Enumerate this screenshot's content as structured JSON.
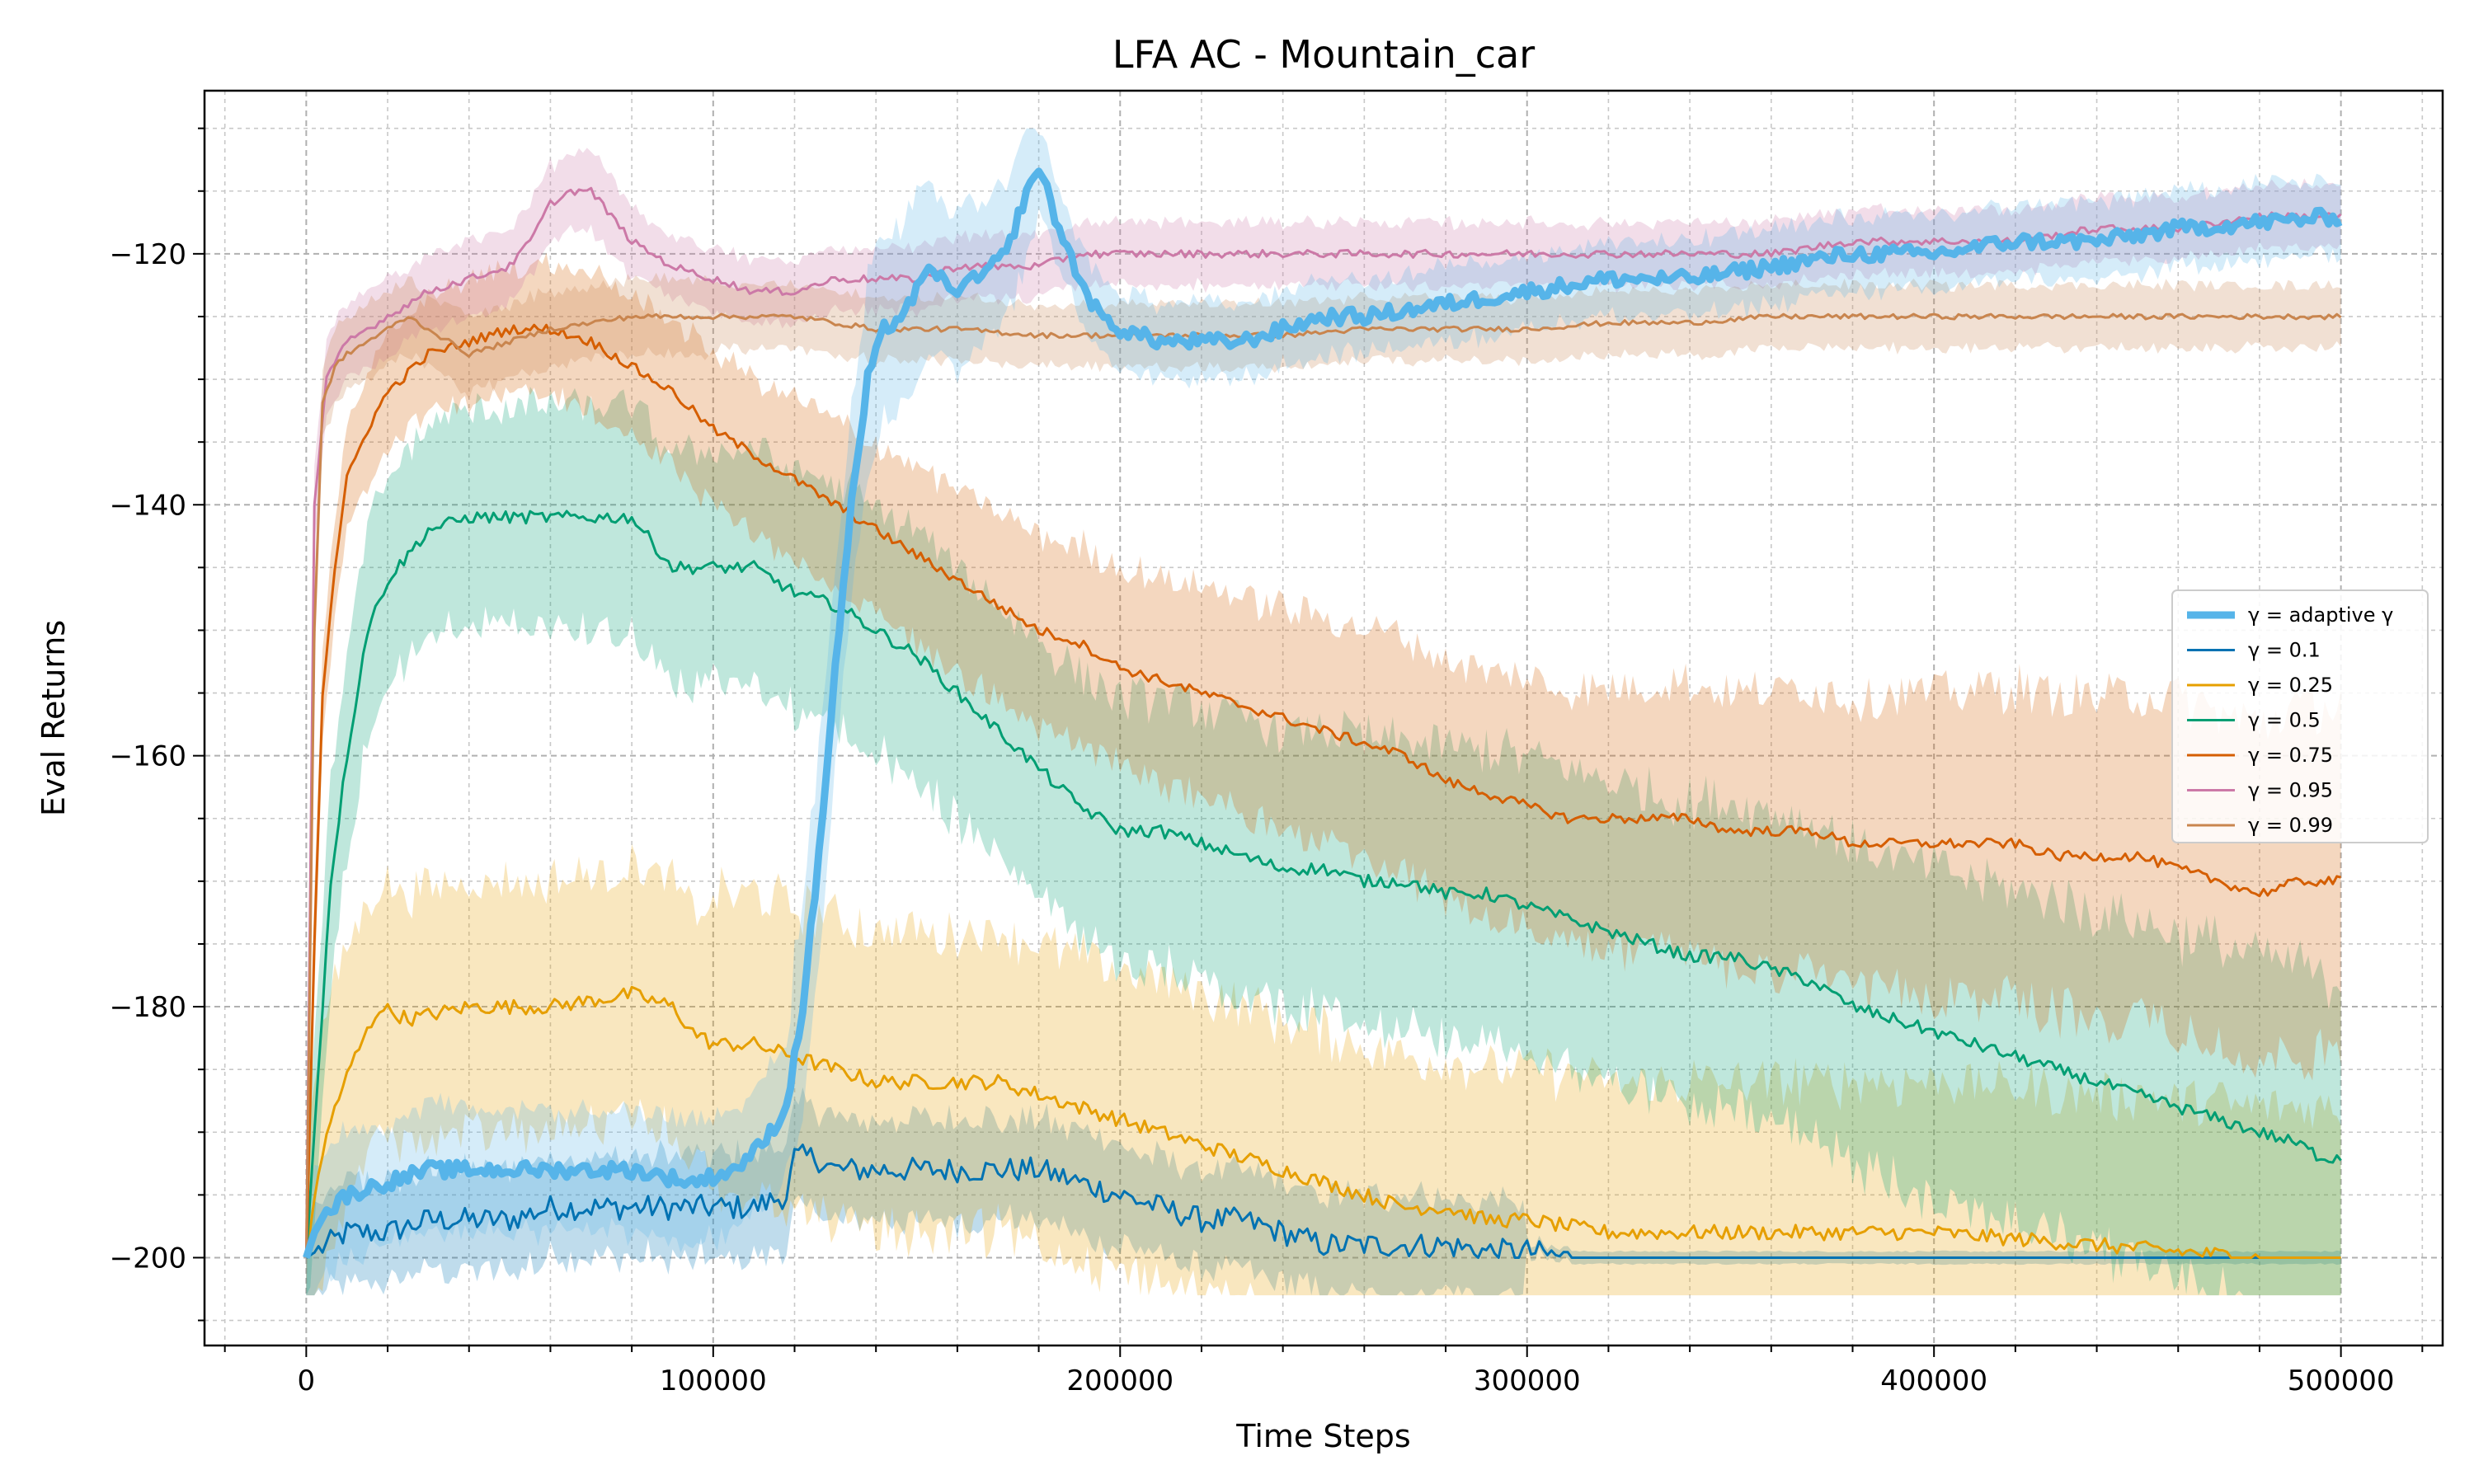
{
  "chart_data": {
    "type": "line",
    "title": "LFA AC - Mountain_car",
    "xlabel": "Time Steps",
    "ylabel": "Eval Returns",
    "xlim": [
      -25000,
      525000
    ],
    "ylim": [
      -207,
      -107
    ],
    "xticks": [
      0,
      100000,
      200000,
      300000,
      400000,
      500000
    ],
    "xtick_labels": [
      "0",
      "100000",
      "200000",
      "300000",
      "400000",
      "500000"
    ],
    "yticks": [
      -200,
      -180,
      -160,
      -140,
      -120
    ],
    "ytick_labels": [
      "−200",
      "−180",
      "−160",
      "−140",
      "−120"
    ],
    "grid": true,
    "legend_position": "center-right",
    "series": [
      {
        "name": "γ = adaptive γ",
        "color": "#56b4e9",
        "bold": true,
        "x": [
          0,
          3000,
          10000,
          20000,
          30000,
          40000,
          60000,
          80000,
          95000,
          105000,
          112000,
          118000,
          122000,
          126000,
          130000,
          134000,
          138000,
          142000,
          146000,
          150000,
          154000,
          158000,
          165000,
          172000,
          176000,
          180000,
          185000,
          190000,
          195000,
          200000,
          210000,
          220000,
          230000,
          240000,
          250000,
          260000,
          280000,
          300000,
          320000,
          340000,
          360000,
          380000,
          400000,
          420000,
          440000,
          460000,
          480000,
          500000
        ],
        "y": [
          -200,
          -197,
          -195,
          -194,
          -193,
          -193,
          -193,
          -193,
          -194,
          -193,
          -191,
          -188,
          -180,
          -168,
          -153,
          -140,
          -130,
          -126,
          -125,
          -123,
          -121,
          -123,
          -122,
          -120,
          -116,
          -113,
          -118,
          -122,
          -125,
          -126,
          -127,
          -127,
          -127,
          -126,
          -125,
          -125,
          -124,
          -123,
          -122,
          -122,
          -121,
          -120,
          -120,
          -119,
          -119,
          -118,
          -117.5,
          -117
        ]
      },
      {
        "name": "γ = 0.1",
        "color": "#0072b2",
        "x": [
          0,
          5000,
          10000,
          20000,
          30000,
          40000,
          50000,
          60000,
          70000,
          80000,
          90000,
          100000,
          110000,
          118000,
          120000,
          125000,
          130000,
          140000,
          150000,
          160000,
          170000,
          180000,
          190000,
          200000,
          210000,
          220000,
          230000,
          240000,
          250000,
          260000,
          270000,
          280000,
          290000,
          300000,
          310000,
          320000,
          350000,
          400000,
          450000,
          500000
        ],
        "y": [
          -200,
          -199,
          -198,
          -198,
          -197,
          -197,
          -197,
          -196,
          -196,
          -196,
          -196,
          -196,
          -196,
          -195,
          -192,
          -192,
          -193,
          -193,
          -193,
          -193,
          -193,
          -193,
          -194,
          -195,
          -196,
          -197,
          -197,
          -198,
          -199,
          -199,
          -199,
          -199,
          -199.5,
          -199.5,
          -200,
          -200,
          -200,
          -200,
          -200,
          -200
        ]
      },
      {
        "name": "γ = 0.25",
        "color": "#e69f00",
        "x": [
          0,
          3000,
          7000,
          12000,
          18000,
          25000,
          40000,
          60000,
          80000,
          90000,
          95000,
          100000,
          110000,
          120000,
          130000,
          140000,
          150000,
          160000,
          170000,
          180000,
          190000,
          200000,
          210000,
          220000,
          230000,
          240000,
          250000,
          260000,
          270000,
          280000,
          290000,
          300000,
          320000,
          340000,
          360000,
          380000,
          400000,
          420000,
          440000,
          460000,
          480000,
          500000
        ],
        "y": [
          -200,
          -193,
          -188,
          -184,
          -180,
          -181,
          -180,
          -180,
          -179,
          -180,
          -182,
          -183,
          -183,
          -184,
          -185,
          -186,
          -186,
          -186,
          -186,
          -187,
          -188,
          -189,
          -190,
          -191,
          -192,
          -193,
          -194,
          -195,
          -196,
          -196,
          -197,
          -197,
          -198,
          -198,
          -198,
          -198,
          -198,
          -198.5,
          -199,
          -199.5,
          -200,
          -200
        ]
      },
      {
        "name": "γ = 0.5",
        "color": "#009e73",
        "x": [
          0,
          3000,
          6000,
          10000,
          15000,
          20000,
          30000,
          40000,
          50000,
          60000,
          70000,
          80000,
          85000,
          90000,
          100000,
          110000,
          120000,
          130000,
          140000,
          150000,
          160000,
          170000,
          180000,
          190000,
          200000,
          210000,
          220000,
          230000,
          240000,
          250000,
          260000,
          270000,
          280000,
          290000,
          300000,
          310000,
          320000,
          330000,
          340000,
          350000,
          360000,
          370000,
          380000,
          390000,
          400000,
          410000,
          420000,
          430000,
          440000,
          450000,
          460000,
          470000,
          480000,
          490000,
          495000,
          500000
        ],
        "y": [
          -200,
          -185,
          -170,
          -160,
          -150,
          -146,
          -142,
          -141,
          -141,
          -141,
          -141,
          -141,
          -143,
          -145,
          -145,
          -145,
          -147,
          -148,
          -150,
          -152,
          -155,
          -158,
          -161,
          -164,
          -166,
          -166,
          -167,
          -168,
          -169,
          -169,
          -170,
          -170,
          -171,
          -171,
          -172,
          -173,
          -174,
          -175,
          -176,
          -176,
          -177,
          -178,
          -180,
          -181,
          -182,
          -183,
          -184,
          -185,
          -186,
          -187,
          -188,
          -189,
          -190,
          -191,
          -192,
          -192
        ]
      },
      {
        "name": "γ = 0.75",
        "color": "#d55e00",
        "x": [
          0,
          2000,
          4000,
          7000,
          10000,
          15000,
          20000,
          30000,
          40000,
          50000,
          60000,
          70000,
          80000,
          90000,
          100000,
          110000,
          120000,
          130000,
          140000,
          150000,
          160000,
          170000,
          180000,
          190000,
          200000,
          210000,
          220000,
          230000,
          240000,
          250000,
          260000,
          270000,
          280000,
          290000,
          300000,
          310000,
          320000,
          330000,
          340000,
          350000,
          360000,
          370000,
          380000,
          390000,
          400000,
          410000,
          420000,
          430000,
          440000,
          450000,
          460000,
          470000,
          480000,
          490000,
          500000
        ],
        "y": [
          -200,
          -175,
          -155,
          -145,
          -138,
          -134,
          -131,
          -128,
          -127,
          -126,
          -126,
          -127,
          -129,
          -131,
          -134,
          -136,
          -138,
          -140,
          -142,
          -144,
          -146,
          -148,
          -150,
          -151,
          -153,
          -154,
          -155,
          -156,
          -157,
          -158,
          -159,
          -160,
          -162,
          -163,
          -164,
          -165,
          -165,
          -165,
          -165,
          -166,
          -166,
          -166,
          -167,
          -167,
          -167,
          -167,
          -167,
          -168,
          -168,
          -168,
          -169,
          -170,
          -171,
          -170,
          -170
        ]
      },
      {
        "name": "γ = 0.95",
        "color": "#cc79a7",
        "x": [
          0,
          2000,
          5000,
          10000,
          20000,
          30000,
          40000,
          50000,
          55000,
          60000,
          65000,
          70000,
          75000,
          80000,
          90000,
          100000,
          110000,
          120000,
          130000,
          140000,
          150000,
          160000,
          170000,
          180000,
          190000,
          200000,
          220000,
          240000,
          260000,
          280000,
          300000,
          320000,
          340000,
          360000,
          380000,
          400000,
          420000,
          440000,
          460000,
          480000,
          500000
        ],
        "y": [
          -200,
          -140,
          -130,
          -127,
          -125,
          -123,
          -122,
          -121,
          -119,
          -116,
          -115,
          -115,
          -117,
          -119,
          -121,
          -122,
          -123,
          -123,
          -122,
          -122,
          -122,
          -121,
          -121,
          -121,
          -120,
          -120,
          -120,
          -120,
          -120,
          -120,
          -120,
          -120,
          -120,
          -120,
          -119,
          -119,
          -119,
          -118,
          -118,
          -117,
          -117
        ]
      },
      {
        "name": "γ = 0.99",
        "color": "#c9854e",
        "x": [
          0,
          2000,
          4000,
          7000,
          10000,
          15000,
          20000,
          25000,
          30000,
          35000,
          40000,
          50000,
          60000,
          70000,
          80000,
          90000,
          100000,
          110000,
          120000,
          140000,
          160000,
          180000,
          200000,
          220000,
          240000,
          260000,
          280000,
          300000,
          320000,
          340000,
          360000,
          380000,
          400000,
          420000,
          440000,
          460000,
          480000,
          500000
        ],
        "y": [
          -200,
          -150,
          -132,
          -129,
          -128,
          -127,
          -126,
          -125,
          -126,
          -127,
          -128,
          -127,
          -126,
          -125.5,
          -125,
          -125,
          -125,
          -125,
          -125,
          -126,
          -126,
          -126.5,
          -126.5,
          -126.5,
          -126.5,
          -126,
          -126,
          -126,
          -125.5,
          -125.5,
          -125,
          -125,
          -125,
          -125,
          -125,
          -125,
          -125,
          -125
        ]
      }
    ]
  }
}
